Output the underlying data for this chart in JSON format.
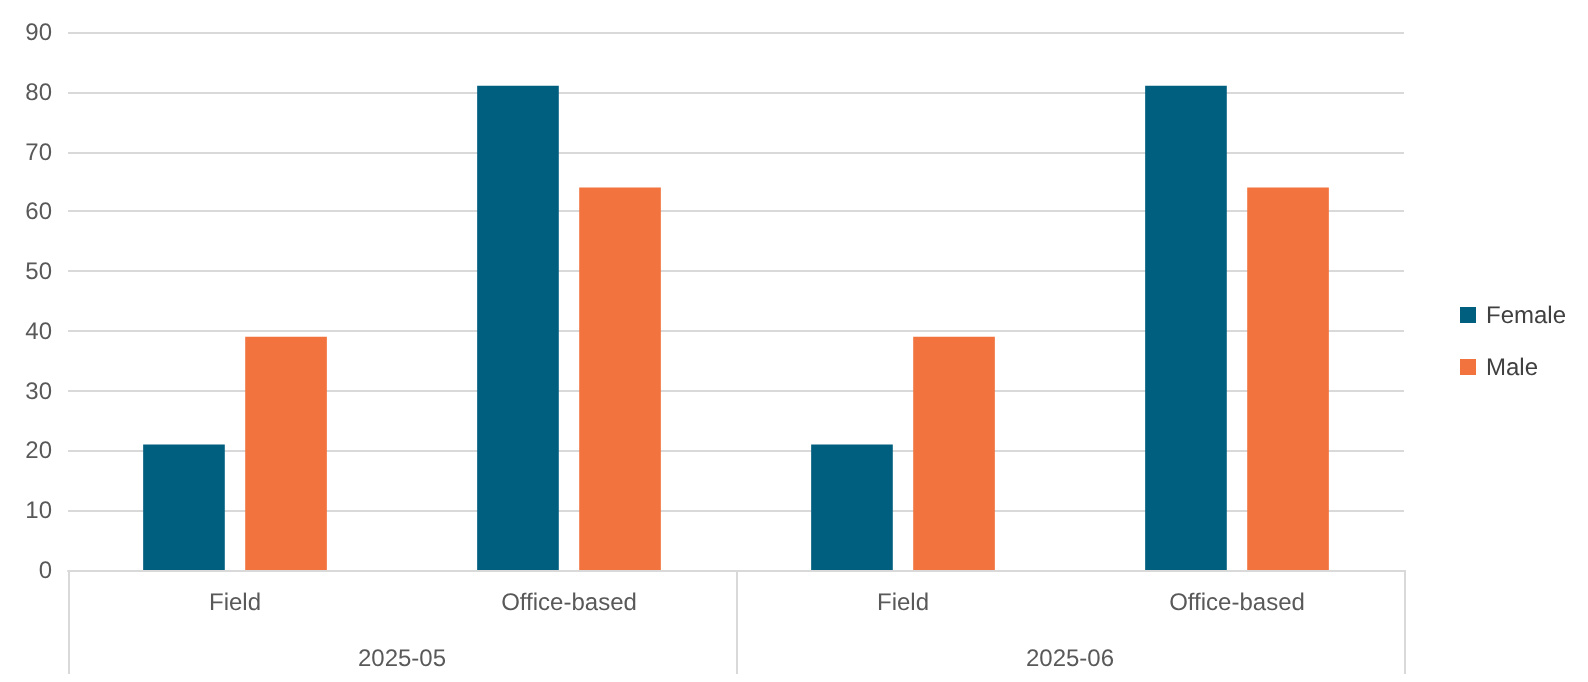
{
  "chart_data": {
    "type": "bar",
    "categories": [
      "Field",
      "Office-based",
      "Field",
      "Office-based"
    ],
    "series": [
      {
        "name": "Female",
        "color": "#005f7f",
        "values": [
          21,
          81,
          21,
          81
        ]
      },
      {
        "name": "Male",
        "color": "#f2733e",
        "values": [
          39,
          64,
          39,
          64
        ]
      }
    ],
    "ylim": [
      0,
      90
    ],
    "yticks": [
      0,
      10,
      20,
      30,
      40,
      50,
      60,
      70,
      80,
      90
    ],
    "grid": "y",
    "legend": "right",
    "annotations": [
      "2025-05",
      "2025-06"
    ]
  }
}
